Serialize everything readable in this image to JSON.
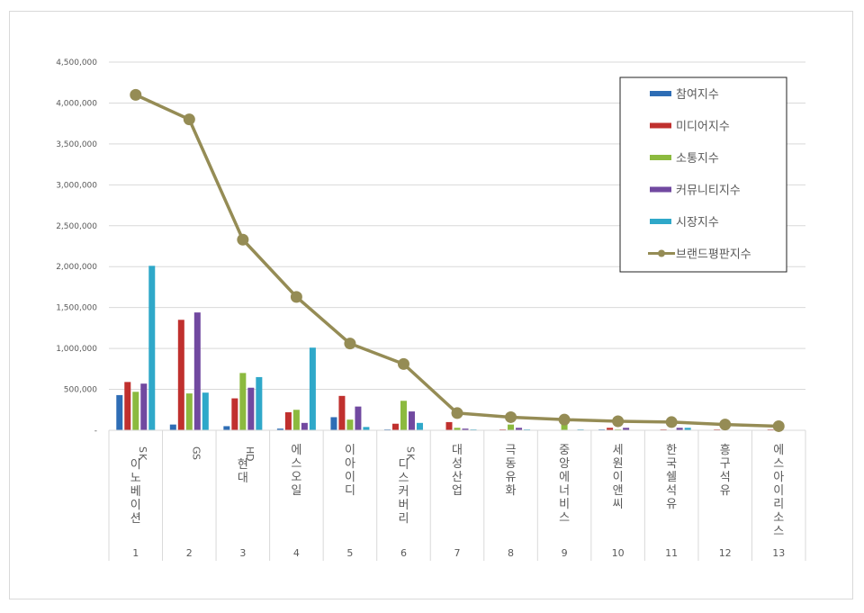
{
  "chart_data": {
    "type": "bar+line",
    "title": "",
    "xlabel": "",
    "ylabel": "",
    "ylim": [
      0,
      4500000
    ],
    "yticks": [
      "-",
      "500,000",
      "1,000,000",
      "1,500,000",
      "2,000,000",
      "2,500,000",
      "3,000,000",
      "3,500,000",
      "4,000,000",
      "4,500,000"
    ],
    "grid": true,
    "legend_position": "top-right",
    "categories": [
      "SK이노베이션",
      "GS",
      "HD현대",
      "에스오일",
      "이아이디",
      "SK디스커버리",
      "대성산업",
      "극동유화",
      "중앙에너비스",
      "세원이앤씨",
      "한국쉘석유",
      "흥구석유",
      "에스아이리소스"
    ],
    "ranks": [
      "1",
      "2",
      "3",
      "4",
      "5",
      "6",
      "7",
      "8",
      "9",
      "10",
      "11",
      "12",
      "13"
    ],
    "series": [
      {
        "name": "참여지수",
        "kind": "bar",
        "color": "#2e6db5",
        "values": [
          430000,
          70000,
          50000,
          20000,
          160000,
          10000,
          5000,
          3000,
          3000,
          10000,
          3000,
          2000,
          2000
        ]
      },
      {
        "name": "미디어지수",
        "kind": "bar",
        "color": "#c0302e",
        "values": [
          590000,
          1350000,
          390000,
          220000,
          420000,
          80000,
          100000,
          10000,
          5000,
          30000,
          10000,
          10000,
          10000
        ]
      },
      {
        "name": "소통지수",
        "kind": "bar",
        "color": "#8cba3f",
        "values": [
          470000,
          450000,
          700000,
          250000,
          130000,
          360000,
          30000,
          70000,
          110000,
          10000,
          3000,
          2000,
          2000
        ]
      },
      {
        "name": "커뮤니티지수",
        "kind": "bar",
        "color": "#7149a0",
        "values": [
          570000,
          1440000,
          520000,
          90000,
          290000,
          230000,
          20000,
          30000,
          5000,
          30000,
          30000,
          3000,
          3000
        ]
      },
      {
        "name": "시장지수",
        "kind": "bar",
        "color": "#2fa8c9",
        "values": [
          2010000,
          460000,
          650000,
          1010000,
          40000,
          90000,
          10000,
          10000,
          10000,
          5000,
          30000,
          3000,
          3000
        ]
      },
      {
        "name": "브랜드평판지수",
        "kind": "line",
        "color": "#958c55",
        "values": [
          4100000,
          3800000,
          2330000,
          1630000,
          1060000,
          810000,
          210000,
          160000,
          130000,
          110000,
          100000,
          70000,
          50000
        ]
      }
    ]
  }
}
